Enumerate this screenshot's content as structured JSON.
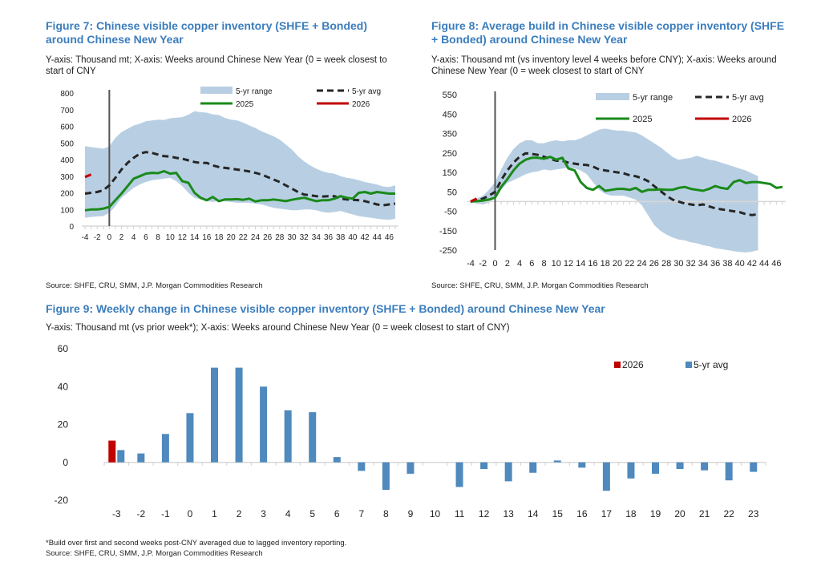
{
  "colors": {
    "title": "#3b7dbd",
    "range": "#b8cfe3",
    "avg": "#262626",
    "y2025": "#1a8a1a",
    "y2026": "#c00000",
    "bar_avg": "#4f89bd",
    "bar_2026": "#c00000"
  },
  "fig7": {
    "title": "Figure 7: Chinese visible copper inventory (SHFE + Bonded) around Chinese New Year",
    "subtitle": "Y-axis: Thousand mt; X-axis: Weeks around Chinese New Year (0 = week closest to start of CNY",
    "source": "Source: SHFE, CRU, SMM, J.P. Morgan Commodities Research"
  },
  "fig8": {
    "title": "Figure 8: Average build in Chinese visible copper inventory (SHFE + Bonded) around Chinese New Year",
    "subtitle": "Y-axis: Thousand mt (vs inventory level 4 weeks before CNY); X-axis: Weeks around Chinese New Year (0 = week closest to start of CNY",
    "source": "Source: SHFE, CRU, SMM, J.P. Morgan Commodities Research"
  },
  "fig9": {
    "title": "Figure 9: Weekly change in Chinese visible copper inventory (SHFE + Bonded) around Chinese New Year",
    "subtitle": "Y-axis: Thousand mt (vs prior week*); X-axis: Weeks around Chinese New Year (0 = week closest to start of CNY)",
    "footnote": "*Build over first and second weeks post-CNY averaged due to lagged inventory reporting.",
    "source": "Source: SHFE, CRU, SMM, J.P. Morgan Commodities Research"
  },
  "chart_data": [
    {
      "id": "fig7",
      "type": "line",
      "title": "Figure 7: Chinese visible copper inventory (SHFE + Bonded) around Chinese New Year",
      "xlabel": "Weeks around Chinese New Year",
      "ylabel": "Thousand mt",
      "xlim": [
        -4,
        47
      ],
      "ylim": [
        0,
        800
      ],
      "yticks": [
        0,
        100,
        200,
        300,
        400,
        500,
        600,
        700,
        800
      ],
      "xticks": [
        -4,
        -2,
        0,
        2,
        4,
        6,
        8,
        10,
        12,
        14,
        16,
        18,
        20,
        22,
        24,
        26,
        28,
        30,
        32,
        34,
        36,
        38,
        40,
        42,
        44,
        46
      ],
      "legend": [
        "5-yr range",
        "5-yr avg",
        "2025",
        "2026"
      ],
      "legend_position": "top-right",
      "x_start": -4,
      "series": [
        {
          "name": "5-yr range upper",
          "values": [
            480,
            475,
            470,
            465,
            480,
            530,
            565,
            585,
            605,
            615,
            630,
            635,
            640,
            638,
            648,
            652,
            655,
            670,
            690,
            685,
            682,
            672,
            668,
            650,
            640,
            635,
            622,
            605,
            590,
            570,
            555,
            540,
            520,
            490,
            460,
            420,
            390,
            365,
            345,
            330,
            320,
            315,
            300,
            290,
            285,
            275,
            265,
            258,
            250,
            238,
            235,
            245
          ]
        },
        {
          "name": "5-yr range lower",
          "values": [
            50,
            55,
            58,
            60,
            80,
            120,
            170,
            200,
            230,
            250,
            265,
            275,
            280,
            285,
            290,
            270,
            240,
            200,
            170,
            160,
            150,
            145,
            150,
            148,
            145,
            140,
            140,
            140,
            135,
            130,
            120,
            110,
            105,
            100,
            95,
            95,
            100,
            100,
            95,
            85,
            80,
            85,
            90,
            80,
            70,
            60,
            55,
            50,
            45,
            40,
            38,
            45
          ]
        },
        {
          "name": "5-yr avg",
          "values": [
            195,
            200,
            205,
            215,
            245,
            290,
            340,
            380,
            410,
            435,
            445,
            440,
            430,
            420,
            418,
            410,
            405,
            395,
            385,
            380,
            380,
            365,
            355,
            350,
            345,
            340,
            335,
            328,
            320,
            310,
            295,
            280,
            265,
            245,
            225,
            205,
            190,
            185,
            180,
            178,
            180,
            180,
            165,
            160,
            158,
            155,
            150,
            140,
            130,
            125,
            130,
            135
          ]
        },
        {
          "name": "2025",
          "values": [
            95,
            100,
            100,
            105,
            115,
            155,
            195,
            240,
            285,
            300,
            315,
            320,
            318,
            330,
            315,
            320,
            270,
            260,
            200,
            170,
            155,
            175,
            150,
            160,
            160,
            162,
            158,
            165,
            148,
            155,
            155,
            160,
            155,
            150,
            158,
            165,
            170,
            160,
            150,
            155,
            155,
            165,
            180,
            170,
            165,
            200,
            205,
            195,
            205,
            200,
            195,
            195,
            190,
            180,
            165,
            165,
            170
          ]
        },
        {
          "name": "2026",
          "values": [
            295,
            310
          ]
        }
      ]
    },
    {
      "id": "fig8",
      "type": "line",
      "title": "Figure 8: Average build in Chinese visible copper inventory (SHFE + Bonded) around Chinese New Year",
      "xlabel": "Weeks around Chinese New Year",
      "ylabel": "Thousand mt (vs inventory level 4 weeks before CNY)",
      "xlim": [
        -4,
        47
      ],
      "ylim": [
        -250,
        550
      ],
      "yticks": [
        -250,
        -150,
        -50,
        50,
        150,
        250,
        350,
        450,
        550
      ],
      "xticks": [
        -4,
        -2,
        0,
        2,
        4,
        6,
        8,
        10,
        12,
        14,
        16,
        18,
        20,
        22,
        24,
        26,
        28,
        30,
        32,
        34,
        36,
        38,
        40,
        42,
        44,
        46
      ],
      "legend": [
        "5-yr range",
        "5-yr avg",
        "2025",
        "2026"
      ],
      "legend_position": "top-right",
      "x_start": -4,
      "series": [
        {
          "name": "5-yr range upper",
          "values": [
            0,
            15,
            30,
            60,
            100,
            165,
            225,
            270,
            300,
            315,
            315,
            300,
            300,
            310,
            315,
            310,
            315,
            315,
            325,
            340,
            355,
            370,
            375,
            370,
            365,
            365,
            360,
            355,
            340,
            320,
            300,
            280,
            255,
            230,
            215,
            220,
            225,
            235,
            225,
            215,
            210,
            200,
            190,
            180,
            170,
            160,
            145,
            130
          ]
        },
        {
          "name": "5-yr range lower",
          "values": [
            0,
            -10,
            -15,
            -5,
            20,
            60,
            95,
            110,
            125,
            140,
            150,
            155,
            165,
            160,
            165,
            170,
            175,
            170,
            160,
            140,
            100,
            60,
            40,
            30,
            30,
            30,
            20,
            10,
            -20,
            -70,
            -120,
            -150,
            -170,
            -185,
            -195,
            -200,
            -210,
            -215,
            -225,
            -230,
            -240,
            -245,
            -250,
            -255,
            -260,
            -262,
            -258,
            -250
          ]
        },
        {
          "name": "5-yr avg",
          "values": [
            0,
            5,
            15,
            30,
            50,
            110,
            160,
            200,
            230,
            248,
            245,
            240,
            230,
            220,
            210,
            210,
            200,
            195,
            190,
            188,
            180,
            165,
            160,
            155,
            150,
            145,
            135,
            130,
            120,
            105,
            80,
            55,
            30,
            10,
            0,
            -10,
            -15,
            -20,
            -15,
            -25,
            -35,
            -40,
            -45,
            -50,
            -55,
            -65,
            -70,
            -65
          ]
        },
        {
          "name": "2025",
          "values": [
            0,
            2,
            5,
            10,
            20,
            75,
            115,
            160,
            195,
            215,
            225,
            225,
            220,
            230,
            215,
            225,
            170,
            160,
            100,
            70,
            60,
            80,
            55,
            60,
            65,
            65,
            60,
            70,
            50,
            60,
            60,
            62,
            60,
            60,
            70,
            75,
            65,
            60,
            55,
            65,
            80,
            70,
            65,
            100,
            110,
            95,
            100,
            100,
            95,
            90,
            70,
            75,
            80
          ]
        },
        {
          "name": "2026",
          "values": [
            0,
            15
          ]
        }
      ]
    },
    {
      "id": "fig9",
      "type": "bar",
      "title": "Figure 9: Weekly change in Chinese visible copper inventory (SHFE + Bonded) around Chinese New Year",
      "xlabel": "Weeks around Chinese New Year",
      "ylabel": "Thousand mt (vs prior week)",
      "ylim": [
        -20,
        60
      ],
      "yticks": [
        -20,
        0,
        20,
        40,
        60
      ],
      "legend": [
        "2026",
        "5-yr avg"
      ],
      "legend_position": "top-right",
      "categories": [
        "-3",
        "-2",
        "-1",
        "0",
        "1",
        "2",
        "3",
        "4",
        "5",
        "6",
        "7",
        "8",
        "9",
        "10",
        "11",
        "12",
        "13",
        "14",
        "15",
        "16",
        "17",
        "18",
        "19",
        "20",
        "21",
        "22",
        "23"
      ],
      "series": [
        {
          "name": "2026",
          "values": [
            11.5,
            null,
            null,
            null,
            null,
            null,
            null,
            null,
            null,
            null,
            null,
            null,
            null,
            null,
            null,
            null,
            null,
            null,
            null,
            null,
            null,
            null,
            null,
            null,
            null,
            null,
            null
          ]
        },
        {
          "name": "5-yr avg",
          "values": [
            6.5,
            4.7,
            15,
            26,
            50,
            50,
            40,
            27.5,
            26.5,
            2.8,
            -4.5,
            -14.5,
            -6,
            0,
            -13,
            -3.5,
            -10,
            -5.5,
            1,
            -2.8,
            -15,
            -8.5,
            -6,
            -3.5,
            -4.2,
            -9.5,
            -5
          ]
        }
      ]
    }
  ]
}
